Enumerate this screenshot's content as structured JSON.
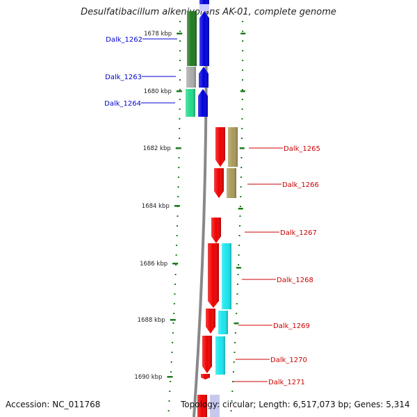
{
  "title": "Desulfatibacillum alkenivorans AK-01, complete genome",
  "footer": {
    "accession": "Accession: NC_011768",
    "summary": "Topology: circular; Length: 6,517,073 bp; Genes: 5,314"
  },
  "colors": {
    "backbone": "#888888",
    "left_label": "#0000cc",
    "right_label": "#cc0000",
    "tick": "#1a7a1a",
    "strand_blue": "#0000dd",
    "strand_red": "#ee0000"
  },
  "ticks": [
    {
      "label": "1678 kbp"
    },
    {
      "label": "1680 kbp"
    },
    {
      "label": "1682 kbp"
    },
    {
      "label": "1684 kbp"
    },
    {
      "label": "1686 kbp"
    },
    {
      "label": "1688 kbp"
    },
    {
      "label": "1690 kbp"
    }
  ],
  "genes_left": [
    {
      "label": "Dalk_1262",
      "outer_color": "#1e7a1e"
    },
    {
      "label": "Dalk_1263",
      "outer_color": "#aaaaaa"
    },
    {
      "label": "Dalk_1264",
      "outer_color": "#22d98a"
    }
  ],
  "genes_right": [
    {
      "label": "Dalk_1265",
      "outer_color": "#a89a5a"
    },
    {
      "label": "Dalk_1266",
      "outer_color": "#a89a5a"
    },
    {
      "label": "Dalk_1267",
      "outer_color": ""
    },
    {
      "label": "Dalk_1268",
      "outer_color": "#19e5ee"
    },
    {
      "label": "Dalk_1269",
      "outer_color": "#19e5ee"
    },
    {
      "label": "Dalk_1270",
      "outer_color": "#19e5ee"
    },
    {
      "label": "Dalk_1271",
      "outer_color": ""
    }
  ]
}
